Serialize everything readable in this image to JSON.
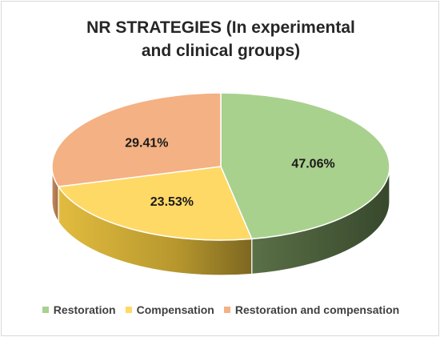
{
  "chart_data": {
    "type": "pie",
    "title_lines": [
      "NR STRATEGIES (In experimental",
      "and clinical groups)"
    ],
    "series": [
      {
        "name": "Restoration",
        "value": 47.06,
        "label": "47.06%",
        "color": "#a9d18e",
        "side_color": "#3d5030"
      },
      {
        "name": "Compensation",
        "value": 23.53,
        "label": "23.53%",
        "color": "#ffd966",
        "side_color": "#a68b2a"
      },
      {
        "name": "Restoration and compensation",
        "value": 29.41,
        "label": "29.41%",
        "color": "#f4b183",
        "side_color": "#b37a52"
      }
    ],
    "legend_position": "bottom",
    "three_d": true
  }
}
